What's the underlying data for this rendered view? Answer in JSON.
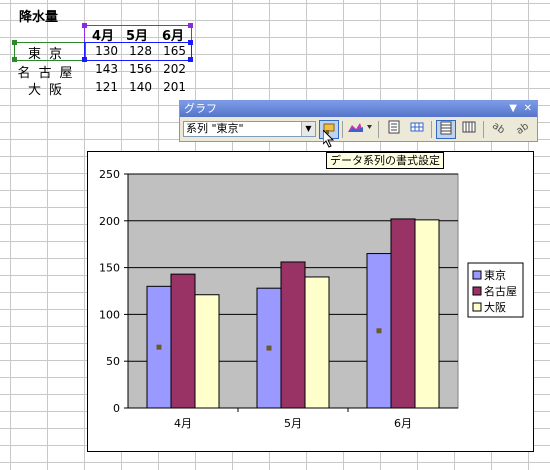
{
  "sheet": {
    "title": "降水量",
    "headers": [
      "4月",
      "5月",
      "6月"
    ],
    "rows": [
      {
        "label": "東京",
        "values": [
          130,
          128,
          165
        ]
      },
      {
        "label": "名古屋",
        "values": [
          143,
          156,
          202
        ]
      },
      {
        "label": "大阪",
        "values": [
          121,
          140,
          201
        ]
      }
    ]
  },
  "toolbar": {
    "title": "グラフ",
    "series_selector": "系列 \"東京\"",
    "tooltip": "データ系列の書式設定",
    "buttons": [
      {
        "name": "format-series-button",
        "icon": "paint-icon",
        "active": true
      },
      {
        "name": "chart-type-button",
        "icon": "area-chart-icon"
      },
      {
        "name": "legend-button",
        "icon": "legend-icon"
      },
      {
        "name": "data-table-button",
        "icon": "table-icon"
      },
      {
        "name": "by-row-button",
        "icon": "by-row-icon",
        "active": true
      },
      {
        "name": "by-column-button",
        "icon": "by-column-icon"
      },
      {
        "name": "angle-text-down-button",
        "icon": "angle-down-icon"
      },
      {
        "name": "angle-text-up-button",
        "icon": "angle-up-icon"
      }
    ]
  },
  "chart_data": {
    "type": "bar",
    "categories": [
      "4月",
      "5月",
      "6月"
    ],
    "series": [
      {
        "name": "東京",
        "values": [
          130,
          128,
          165
        ],
        "color": "#9999ff"
      },
      {
        "name": "名古屋",
        "values": [
          143,
          156,
          202
        ],
        "color": "#993366"
      },
      {
        "name": "大阪",
        "values": [
          121,
          140,
          201
        ],
        "color": "#ffffcc"
      }
    ],
    "ylim": [
      0,
      250
    ],
    "yticks": [
      0,
      50,
      100,
      150,
      200,
      250
    ],
    "grid": true,
    "legend": "right",
    "plot_background": "#c0c0c0",
    "selected_series": "東京"
  }
}
